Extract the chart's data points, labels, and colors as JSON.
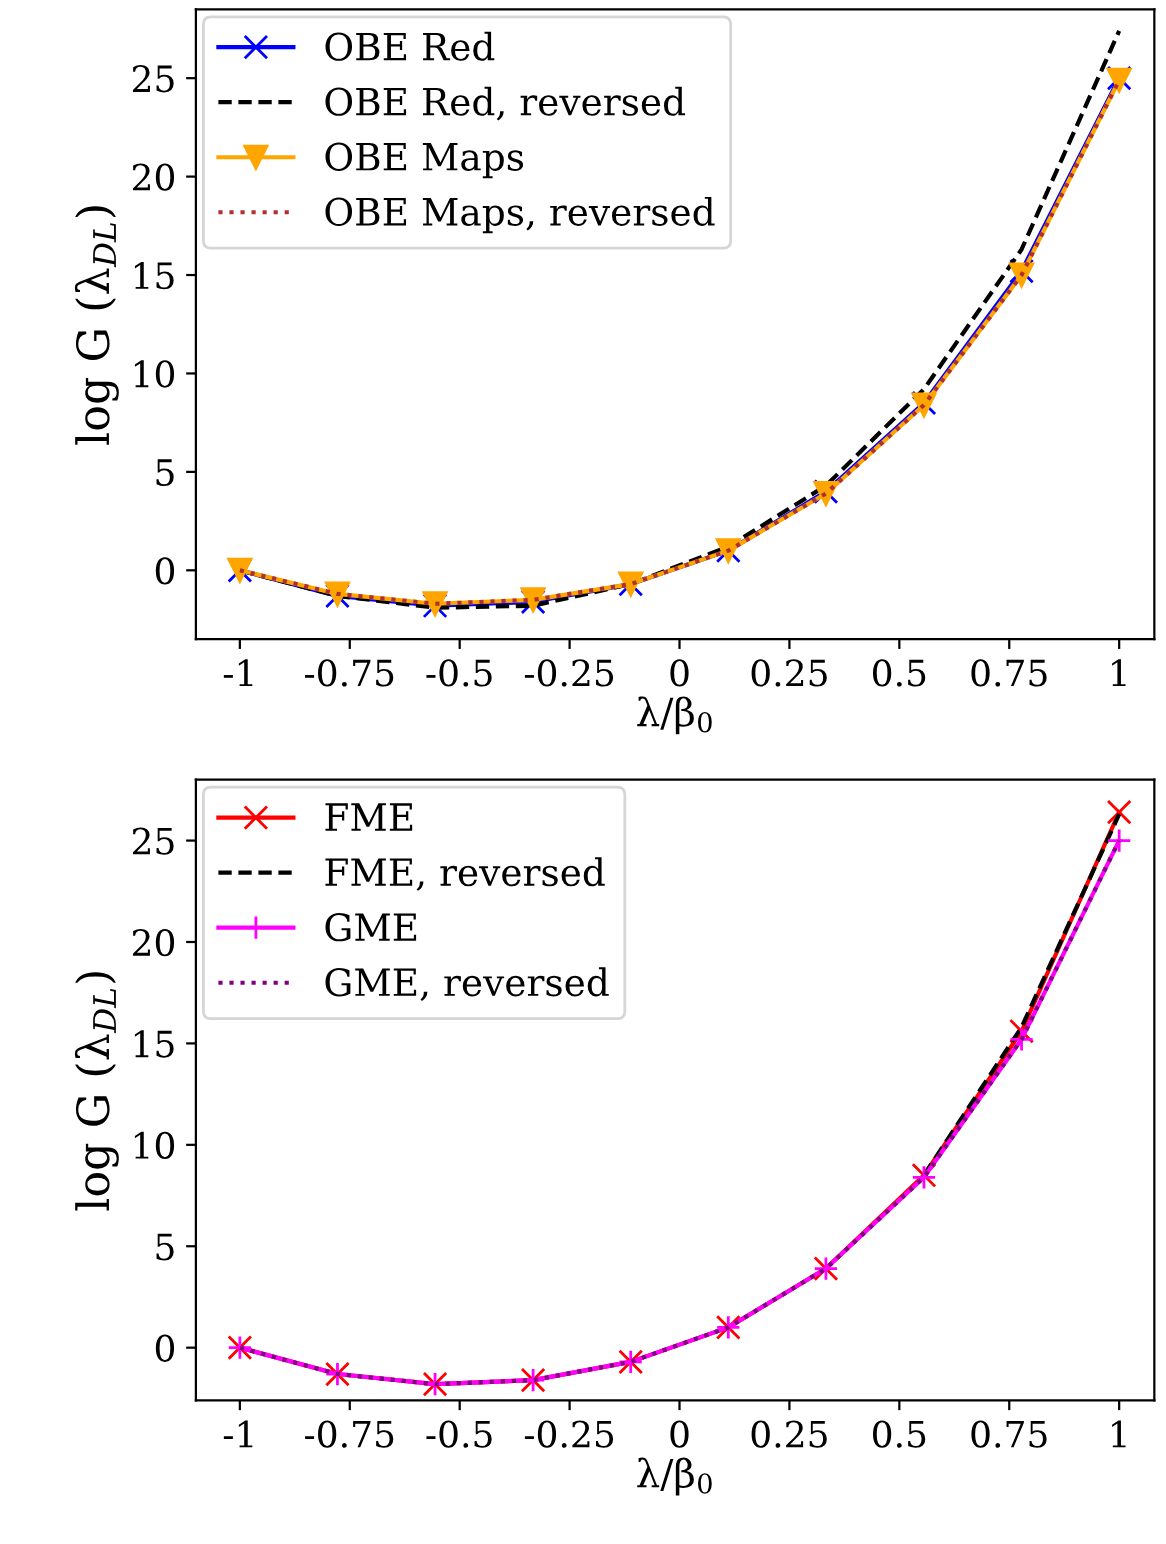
{
  "chart_data": [
    {
      "type": "line",
      "xlabel": "λ/β$_{0}$",
      "ylabel": "log G (λ$_{DL}$)",
      "x": [
        -1,
        -0.778,
        -0.556,
        -0.333,
        -0.111,
        0.111,
        0.333,
        0.556,
        0.778,
        1
      ],
      "series": [
        {
          "name": "OBE Red",
          "color": "#0000ff",
          "marker": "cross",
          "line_style": "solid",
          "values": [
            0,
            -1.3,
            -1.8,
            -1.6,
            -0.7,
            1.0,
            4.0,
            8.5,
            15.2,
            25.0
          ]
        },
        {
          "name": "OBE Red, reversed",
          "color": "#000000",
          "marker": "none",
          "line_style": "dashed",
          "values": [
            0,
            -1.3,
            -1.9,
            -1.8,
            -0.7,
            1.2,
            4.3,
            9.2,
            16.3,
            27.4
          ]
        },
        {
          "name": "OBE Maps",
          "color": "#ffa500",
          "marker": "triangle",
          "line_style": "solid",
          "values": [
            0,
            -1.2,
            -1.7,
            -1.5,
            -0.7,
            1.0,
            3.9,
            8.4,
            15.0,
            24.9
          ]
        },
        {
          "name": "OBE Maps, reversed",
          "color": "#b03030",
          "marker": "none",
          "line_style": "dotted",
          "values": [
            0,
            -1.2,
            -1.7,
            -1.5,
            -0.7,
            1.0,
            3.9,
            8.4,
            15.0,
            24.9
          ]
        }
      ],
      "xlim": [
        -1.1,
        1.08
      ],
      "ylim": [
        -3.5,
        28.5
      ],
      "xticks": [
        -1,
        -0.75,
        -0.5,
        -0.25,
        0,
        0.25,
        0.5,
        0.75,
        1
      ],
      "yticks": [
        0,
        5,
        10,
        15,
        20,
        25
      ],
      "grid": false,
      "legend": "top left"
    },
    {
      "type": "line",
      "xlabel": "λ/β$_{0}$",
      "ylabel": "log G (λ$_{DL}$)",
      "x": [
        -1,
        -0.778,
        -0.556,
        -0.333,
        -0.111,
        0.111,
        0.333,
        0.556,
        0.778,
        1
      ],
      "series": [
        {
          "name": "FME",
          "color": "#ff0000",
          "marker": "cross",
          "line_style": "solid",
          "values": [
            0,
            -1.3,
            -1.8,
            -1.6,
            -0.7,
            1.0,
            3.9,
            8.5,
            15.6,
            26.4
          ]
        },
        {
          "name": "FME, reversed",
          "color": "#000000",
          "marker": "none",
          "line_style": "dashed",
          "values": [
            null,
            null,
            null,
            null,
            null,
            null,
            null,
            8.5,
            15.8,
            26.3
          ]
        },
        {
          "name": "GME",
          "color": "#ff00ff",
          "marker": "plus",
          "line_style": "solid",
          "values": [
            0,
            -1.3,
            -1.8,
            -1.6,
            -0.7,
            1.0,
            3.9,
            8.4,
            15.2,
            25.0
          ]
        },
        {
          "name": "GME, reversed",
          "color": "#800080",
          "marker": "none",
          "line_style": "dotted",
          "values": [
            0,
            -1.3,
            -1.8,
            -1.6,
            -0.7,
            1.0,
            3.9,
            8.4,
            15.2,
            25.0
          ]
        }
      ],
      "xlim": [
        -1.1,
        1.08
      ],
      "ylim": [
        -2.6,
        28
      ],
      "xticks": [
        -1,
        -0.75,
        -0.5,
        -0.25,
        0,
        0.25,
        0.5,
        0.75,
        1
      ],
      "yticks": [
        0,
        5,
        10,
        15,
        20,
        25
      ],
      "grid": false,
      "legend": "top left"
    }
  ]
}
